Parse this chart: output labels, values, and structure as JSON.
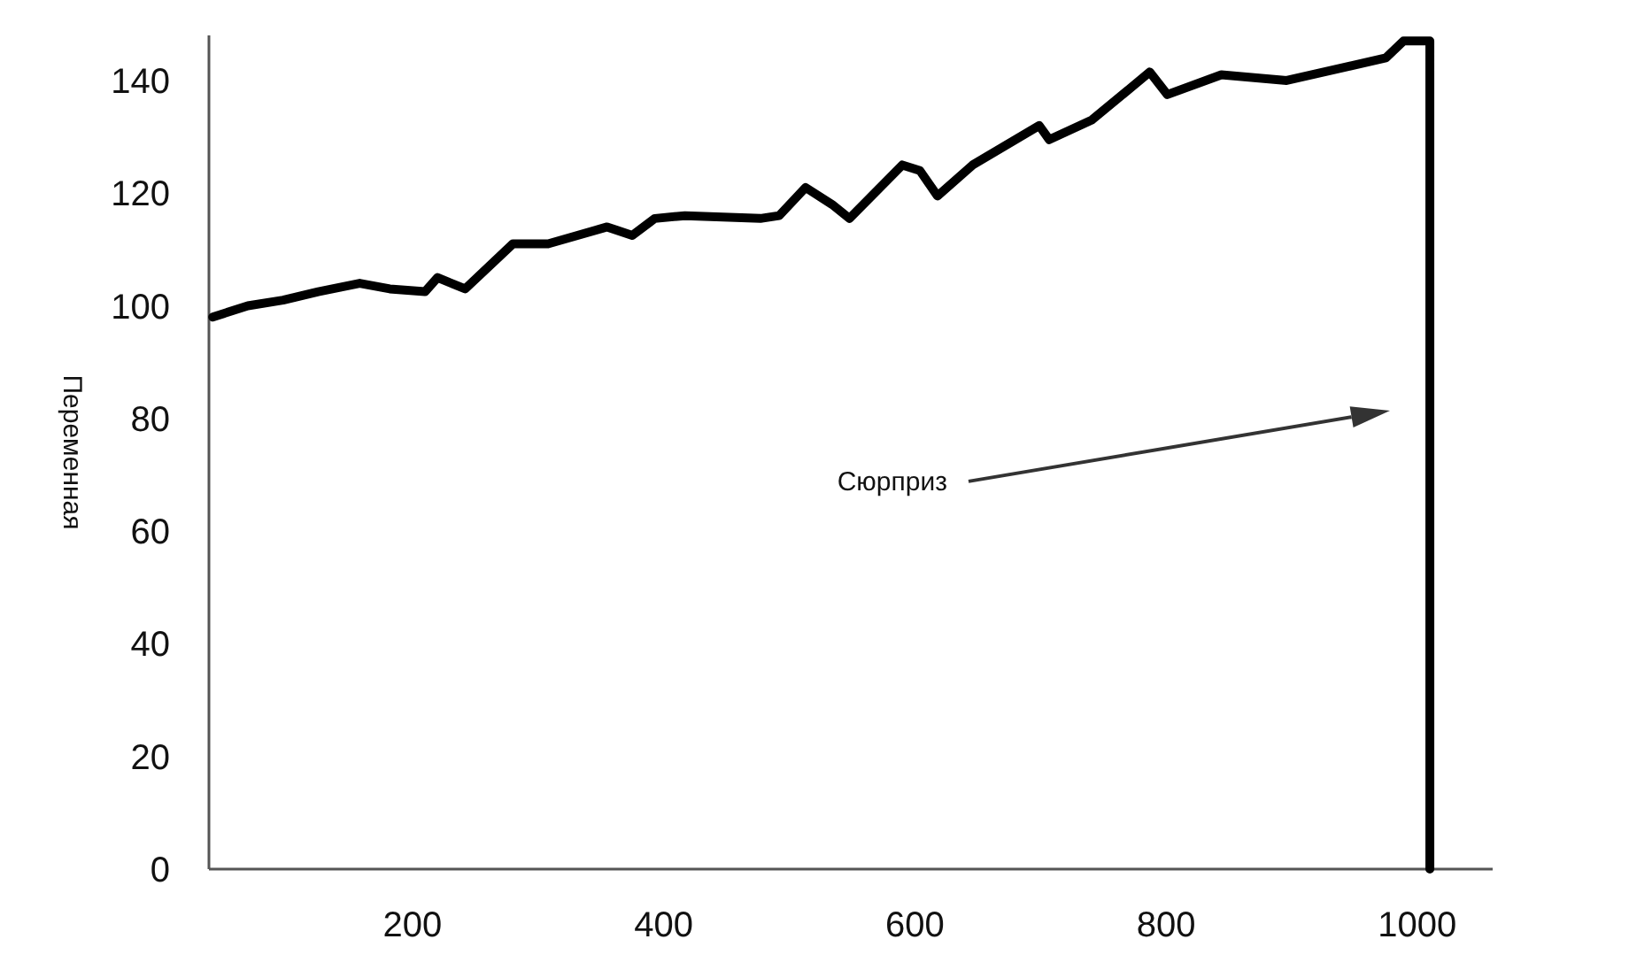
{
  "chart_data": {
    "type": "line",
    "ylabel": "Переменная",
    "xlim": [
      38,
      1060
    ],
    "ylim": [
      0,
      148
    ],
    "xticks": [
      200,
      400,
      600,
      800,
      1000
    ],
    "yticks": [
      0,
      20,
      40,
      60,
      80,
      100,
      120,
      140
    ],
    "grid": false,
    "marker": "none",
    "line_style": "solid",
    "series": [
      {
        "color": "#000000",
        "x": [
          41,
          69,
          97,
          125,
          158,
          182,
          210,
          220,
          242,
          280,
          308,
          355,
          375,
          393,
          417,
          477,
          492,
          513,
          534,
          548,
          590,
          604,
          618,
          646,
          699,
          707,
          741,
          787,
          801,
          844,
          896,
          975,
          989,
          1010,
          1010
        ],
        "values": [
          98,
          100,
          101,
          102.5,
          104,
          103,
          102.5,
          105,
          103,
          111,
          111,
          114,
          112.5,
          115.5,
          116,
          115.5,
          116,
          121,
          118,
          115.5,
          125,
          124,
          119.5,
          125,
          132,
          129.5,
          133,
          141.5,
          137.5,
          141,
          140,
          144,
          147,
          147,
          0
        ]
      }
    ],
    "annotations": [
      "Сюрприз"
    ]
  }
}
